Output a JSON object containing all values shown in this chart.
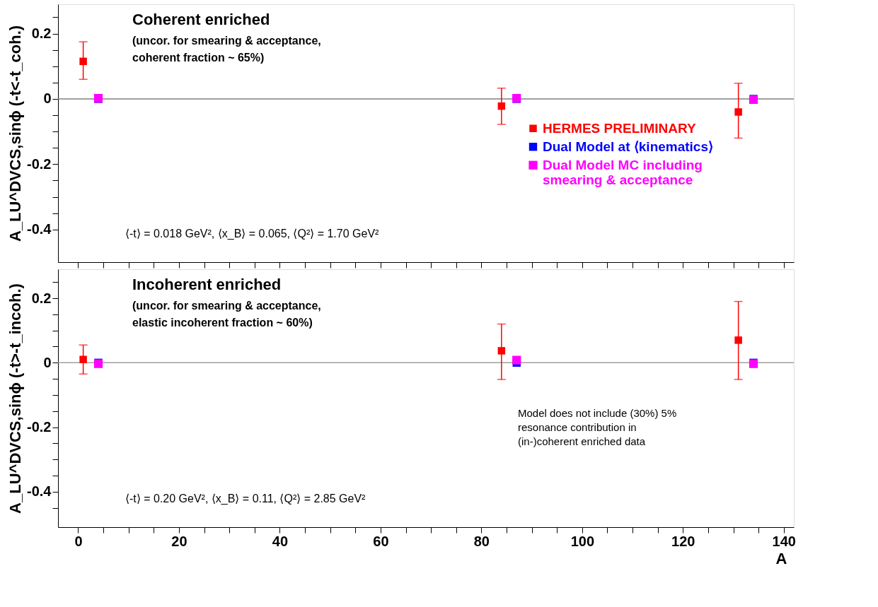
{
  "chart_data": [
    {
      "type": "scatter",
      "ylabel": "A_LU^DVCS,sinϕ (-t<-t_coh.)",
      "xlim": [
        -4,
        142
      ],
      "ylim": [
        -0.5,
        0.29
      ],
      "xticks": [
        0,
        {
          "value": 5,
          "label": null
        },
        {
          "value": 10,
          "label": null
        },
        {
          "value": 15,
          "label": null
        },
        20,
        {
          "value": 25,
          "label": null
        },
        {
          "value": 30,
          "label": null
        },
        {
          "value": 35,
          "label": null
        },
        40,
        {
          "value": 45,
          "label": null
        },
        {
          "value": 50,
          "label": null
        },
        {
          "value": 55,
          "label": null
        },
        60,
        {
          "value": 65,
          "label": null
        },
        {
          "value": 70,
          "label": null
        },
        {
          "value": 75,
          "label": null
        },
        80,
        {
          "value": 85,
          "label": null
        },
        {
          "value": 90,
          "label": null
        },
        {
          "value": 95,
          "label": null
        },
        100,
        {
          "value": 105,
          "label": null
        },
        {
          "value": 110,
          "label": null
        },
        {
          "value": 115,
          "label": null
        },
        120,
        {
          "value": 125,
          "label": null
        },
        {
          "value": 130,
          "label": null
        },
        {
          "value": 135,
          "label": null
        },
        140
      ],
      "yticks": [
        -0.4,
        {
          "value": -0.35,
          "label": null
        },
        {
          "value": -0.3,
          "label": null
        },
        {
          "value": -0.25,
          "label": null
        },
        -0.2,
        {
          "value": -0.15,
          "label": null
        },
        {
          "value": -0.1,
          "label": null
        },
        {
          "value": -0.05,
          "label": null
        },
        0,
        {
          "value": 0.05,
          "label": null
        },
        {
          "value": 0.1,
          "label": null
        },
        {
          "value": 0.15,
          "label": null
        },
        0.2,
        {
          "value": 0.25,
          "label": null
        }
      ],
      "tick_labels": "y",
      "marker": "square",
      "legend": "right",
      "series": [
        {
          "name": "HERMES PRELIMINARY",
          "color": "#ff0000",
          "x": [
            1,
            84,
            131
          ],
          "values": [
            0.115,
            -0.022,
            -0.04
          ],
          "errors": [
            [
              0.06,
              0.175
            ],
            [
              -0.078,
              0.033
            ],
            [
              -0.12,
              0.048
            ]
          ]
        },
        {
          "name": "Dual Model at ⟨kinematics⟩",
          "color": "#0000ff",
          "x": [
            4,
            87,
            134
          ],
          "values": [
            0,
            0,
            0
          ]
        },
        {
          "name": "Dual Model MC including smearing & acceptance",
          "color": "#ff00ff",
          "x": [
            4,
            87,
            134
          ],
          "values": [
            0.002,
            0.002,
            -0.002
          ]
        }
      ],
      "ref_lines": [
        {
          "axis": "y",
          "value": 0,
          "color": "#808080"
        }
      ],
      "annotations": [
        "Coherent enriched",
        "(uncor. for smearing & acceptance,",
        "coherent fraction ~ 65%)",
        "⟨-t⟩ = 0.018 GeV², ⟨x_B⟩ = 0.065, ⟨Q²⟩ = 1.70 GeV²"
      ]
    },
    {
      "type": "scatter",
      "ylabel": "A_LU^DVCS,sinϕ (-t>-t_incoh.)",
      "xlabel": "A",
      "xlim": [
        -4,
        142
      ],
      "ylim": [
        -0.51,
        0.29
      ],
      "xticks": [
        0,
        {
          "value": 5,
          "label": null
        },
        {
          "value": 10,
          "label": null
        },
        {
          "value": 15,
          "label": null
        },
        20,
        {
          "value": 25,
          "label": null
        },
        {
          "value": 30,
          "label": null
        },
        {
          "value": 35,
          "label": null
        },
        40,
        {
          "value": 45,
          "label": null
        },
        {
          "value": 50,
          "label": null
        },
        {
          "value": 55,
          "label": null
        },
        60,
        {
          "value": 65,
          "label": null
        },
        {
          "value": 70,
          "label": null
        },
        {
          "value": 75,
          "label": null
        },
        80,
        {
          "value": 85,
          "label": null
        },
        {
          "value": 90,
          "label": null
        },
        {
          "value": 95,
          "label": null
        },
        100,
        {
          "value": 105,
          "label": null
        },
        {
          "value": 110,
          "label": null
        },
        {
          "value": 115,
          "label": null
        },
        120,
        {
          "value": 125,
          "label": null
        },
        {
          "value": 130,
          "label": null
        },
        {
          "value": 135,
          "label": null
        },
        140
      ],
      "yticks": [
        {
          "value": -0.45,
          "label": null
        },
        -0.4,
        {
          "value": -0.35,
          "label": null
        },
        {
          "value": -0.3,
          "label": null
        },
        {
          "value": -0.25,
          "label": null
        },
        -0.2,
        {
          "value": -0.15,
          "label": null
        },
        {
          "value": -0.1,
          "label": null
        },
        {
          "value": -0.05,
          "label": null
        },
        0,
        {
          "value": 0.05,
          "label": null
        },
        {
          "value": 0.1,
          "label": null
        },
        {
          "value": 0.15,
          "label": null
        },
        0.2,
        {
          "value": 0.25,
          "label": null
        }
      ],
      "marker": "square",
      "series": [
        {
          "color": "#ff0000",
          "x": [
            1,
            84,
            131
          ],
          "values": [
            0.01,
            0.037,
            0.07
          ],
          "errors": [
            [
              -0.035,
              0.055
            ],
            [
              -0.052,
              0.12
            ],
            [
              -0.052,
              0.19
            ]
          ]
        },
        {
          "color": "#0000ff",
          "x": [
            4,
            87,
            134
          ],
          "values": [
            0,
            0,
            0
          ]
        },
        {
          "color": "#ff00ff",
          "x": [
            4,
            87,
            134
          ],
          "values": [
            -0.003,
            0.008,
            -0.003
          ]
        }
      ],
      "ref_lines": [
        {
          "axis": "y",
          "value": 0,
          "color": "#a0a0a0"
        }
      ],
      "annotations": [
        "Incoherent enriched",
        "(uncor. for smearing & acceptance,",
        "elastic incoherent fraction ~ 60%)",
        "⟨-t⟩ = 0.20 GeV², ⟨x_B⟩ = 0.11, ⟨Q²⟩ = 2.85 GeV²",
        "Model does not include (30%) 5%",
        "resonance contribution in",
        "(in-)coherent enriched data"
      ]
    }
  ]
}
